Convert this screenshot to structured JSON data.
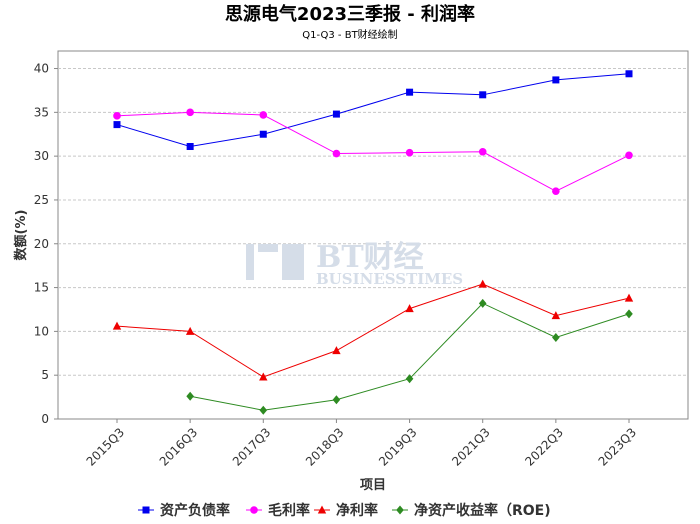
{
  "chart_data": {
    "type": "line",
    "title": "思源电气2023三季报 - 利润率",
    "subtitle": "Q1-Q3 - BT财经绘制",
    "xlabel": "项目",
    "ylabel": "数额(%)",
    "ylim": [
      0,
      42
    ],
    "yticks": [
      0,
      5,
      10,
      15,
      20,
      25,
      30,
      35,
      40
    ],
    "grid": true,
    "legend_position": "bottom",
    "categories": [
      "2015Q3",
      "2016Q3",
      "2017Q3",
      "2018Q3",
      "2019Q3",
      "2021Q3",
      "2022Q3",
      "2023Q3"
    ],
    "series": [
      {
        "name": "资产负债率",
        "color": "#0000ee",
        "marker": "square",
        "values": [
          33.6,
          31.1,
          32.5,
          34.8,
          37.3,
          37.0,
          38.7,
          39.4
        ]
      },
      {
        "name": "毛利率",
        "color": "#ff00ff",
        "marker": "circle",
        "values": [
          34.6,
          35.0,
          34.7,
          30.3,
          30.4,
          30.5,
          26.0,
          30.1
        ]
      },
      {
        "name": "净利率",
        "color": "#ee0000",
        "marker": "triangle",
        "values": [
          10.6,
          10.0,
          4.8,
          7.8,
          12.6,
          15.4,
          11.8,
          13.8
        ]
      },
      {
        "name": "净资产收益率（ROE)",
        "color": "#2e8b22",
        "marker": "diamond",
        "values": [
          null,
          2.6,
          1.0,
          2.2,
          4.6,
          13.2,
          9.3,
          12.0
        ]
      }
    ]
  },
  "watermark": {
    "main": "BT财经",
    "sub": "BUSINESSTIMES"
  }
}
